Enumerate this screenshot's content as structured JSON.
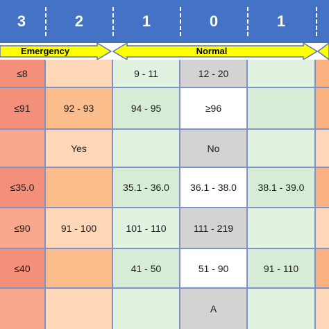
{
  "header": {
    "scores": [
      "3",
      "2",
      "1",
      "0",
      "1"
    ]
  },
  "bands": {
    "left_label": "Emergency",
    "right_label": "Normal"
  },
  "rows": [
    [
      "≤8",
      "",
      "9 - 11",
      "12 - 20",
      "",
      ""
    ],
    [
      "≤91",
      "92 - 93",
      "94 - 95",
      "≥96",
      "",
      ""
    ],
    [
      "",
      "Yes",
      "",
      "No",
      "",
      ""
    ],
    [
      "≤35.0",
      "",
      "35.1 - 36.0",
      "36.1 - 38.0",
      "38.1 - 39.0",
      ""
    ],
    [
      "≤90",
      "91 - 100",
      "101 - 110",
      "111 - 219",
      "",
      ""
    ],
    [
      "≤40",
      "",
      "41 - 50",
      "51 - 90",
      "91 - 110",
      ""
    ],
    [
      "",
      "",
      "",
      "A",
      "",
      ""
    ]
  ],
  "colors": {
    "header_blue": "#4472c4",
    "arrow_yellow": "#ffff00",
    "grid_line": "#7f93c8"
  }
}
